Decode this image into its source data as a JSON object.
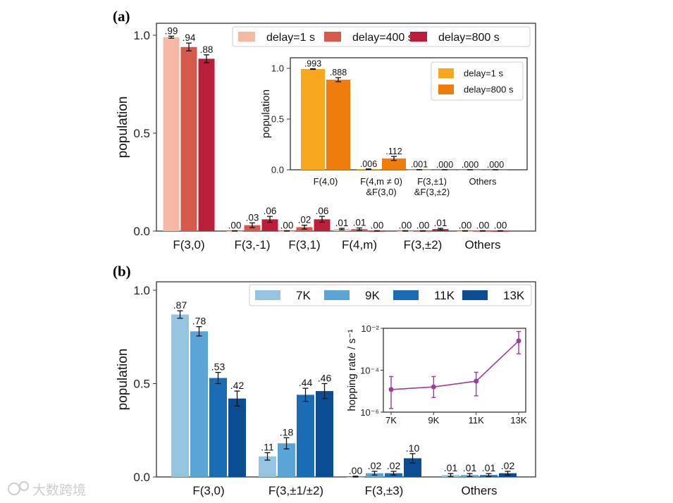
{
  "chart_data": [
    {
      "type": "bar",
      "panel": "(a)",
      "ylabel": "population",
      "ylim": [
        0,
        1.06
      ],
      "yticks": [
        "0.0",
        "0.5",
        "1.0"
      ],
      "categories": [
        "F(3,0)",
        "F(3,-1)",
        "F(3,1)",
        "F(4,m)",
        "F(3,±2)",
        "Others"
      ],
      "legend_position": "top-right",
      "series": [
        {
          "name": "delay=1 s",
          "color": "#f5b8a5",
          "values": [
            0.99,
            0.0,
            0.0,
            0.01,
            0.0,
            0.0
          ],
          "errors": [
            0.005,
            0.002,
            0.002,
            0.004,
            0.002,
            0.002
          ],
          "labels": [
            ".99",
            ".00",
            ".00",
            ".01",
            ".00",
            ".00"
          ]
        },
        {
          "name": "delay=400 s",
          "color": "#d65a4c",
          "values": [
            0.94,
            0.03,
            0.02,
            0.01,
            0.0,
            0.0
          ],
          "errors": [
            0.02,
            0.012,
            0.01,
            0.006,
            0.002,
            0.002
          ],
          "labels": [
            ".94",
            ".03",
            ".02",
            ".01",
            ".00",
            ".00"
          ]
        },
        {
          "name": "delay=800 s",
          "color": "#bb1e38",
          "values": [
            0.88,
            0.06,
            0.06,
            0.0,
            0.01,
            0.0
          ],
          "errors": [
            0.02,
            0.015,
            0.015,
            0.002,
            0.004,
            0.002
          ],
          "labels": [
            ".88",
            ".06",
            ".06",
            ".00",
            ".01",
            ".00"
          ]
        }
      ],
      "inset": {
        "type": "bar",
        "ylabel": "population",
        "ylim": [
          0,
          1.1
        ],
        "yticks": [
          "0.0",
          "0.5",
          "1.0"
        ],
        "categories": [
          [
            "F(4,0)"
          ],
          [
            "F(4,m ≠ 0)",
            "&F(3,0)"
          ],
          [
            "F(3,±1)",
            "&F(3,±2)"
          ],
          [
            "Others"
          ]
        ],
        "legend_position": "top-right",
        "series": [
          {
            "name": "delay=1 s",
            "color": "#f7a81c",
            "values": [
              0.993,
              0.006,
              0.001,
              0.0
            ],
            "errors": [
              0.003,
              0.002,
              0.001,
              0.001
            ],
            "labels": [
              ".993",
              ".006",
              ".001",
              ".000"
            ]
          },
          {
            "name": "delay=800 s",
            "color": "#ef7d0e",
            "values": [
              0.888,
              0.112,
              0.0,
              0.0
            ],
            "errors": [
              0.02,
              0.02,
              0.001,
              0.001
            ],
            "labels": [
              ".888",
              ".112",
              ".000",
              ".000"
            ]
          }
        ]
      }
    },
    {
      "type": "bar",
      "panel": "(b)",
      "ylabel": "population",
      "ylim": [
        0,
        1.04
      ],
      "yticks": [
        "0.0",
        "0.5",
        "1.0"
      ],
      "categories": [
        "F(3,0)",
        "F(3,±1/±2)",
        "F(3,±3)",
        "Others"
      ],
      "legend_position": "top-right",
      "series": [
        {
          "name": "7K",
          "color": "#94c4df",
          "values": [
            0.87,
            0.11,
            0.0,
            0.01
          ],
          "errors": [
            0.02,
            0.02,
            0.004,
            0.008
          ],
          "labels": [
            ".87",
            ".11",
            ".00",
            ".01"
          ]
        },
        {
          "name": "9K",
          "color": "#5aa5d5",
          "values": [
            0.78,
            0.18,
            0.02,
            0.01
          ],
          "errors": [
            0.025,
            0.03,
            0.01,
            0.008
          ],
          "labels": [
            ".78",
            ".18",
            ".02",
            ".01"
          ]
        },
        {
          "name": "11K",
          "color": "#1a6cb5",
          "values": [
            0.53,
            0.44,
            0.02,
            0.01
          ],
          "errors": [
            0.03,
            0.035,
            0.01,
            0.008
          ],
          "labels": [
            ".53",
            ".44",
            ".02",
            ".01"
          ]
        },
        {
          "name": "13K",
          "color": "#0b4d92",
          "values": [
            0.42,
            0.46,
            0.1,
            0.02
          ],
          "errors": [
            0.04,
            0.04,
            0.025,
            0.01
          ],
          "labels": [
            ".42",
            ".46",
            ".10",
            ".02"
          ]
        }
      ],
      "inset": {
        "type": "line",
        "ylabel": "hopping rate / s⁻¹",
        "yscale": "log",
        "ylim": [
          1e-06,
          0.01
        ],
        "yticks": [
          "10⁻⁶",
          "10⁻⁴",
          "10⁻²"
        ],
        "x": [
          "7K",
          "9K",
          "11K",
          "13K"
        ],
        "color": "#9b3c9e",
        "values": [
          1.2e-05,
          1.6e-05,
          3e-05,
          0.0025
        ],
        "err_low": [
          1.5e-06,
          5e-06,
          6e-06,
          0.0006
        ],
        "err_high": [
          5e-05,
          5e-05,
          8e-05,
          0.007
        ]
      }
    }
  ],
  "watermark": "大数跨境"
}
